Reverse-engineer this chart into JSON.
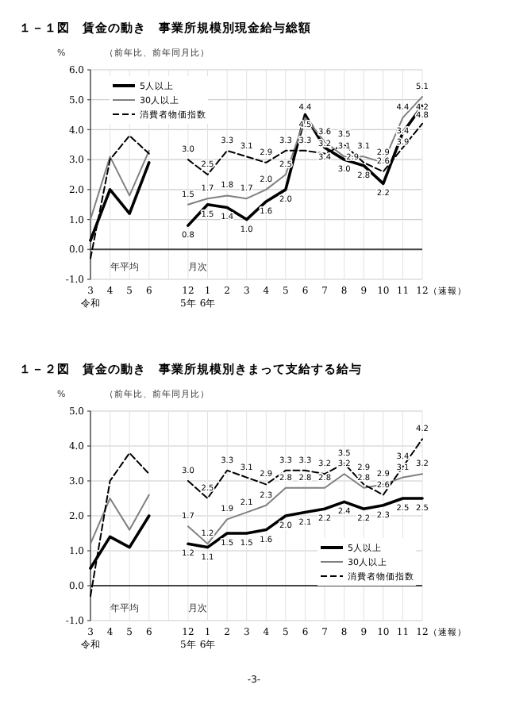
{
  "chart_data": [
    {
      "type": "line",
      "title": "１－１図　賃金の動き　事業所規模別現金給与総額",
      "subtitle": "（前年比、前年同月比）",
      "ylabel": "%",
      "categories": [
        "3\n令和",
        "4",
        "5",
        "6",
        null,
        "12\n5年",
        "1\n6年",
        "2",
        "3",
        "4",
        "5",
        "6",
        "7",
        "8",
        "9",
        "10",
        "11",
        "12"
      ],
      "ylim": [
        -1,
        6
      ],
      "yticks": [
        {
          "value": -1,
          "label": "-1.0"
        },
        {
          "value": 0,
          "label": "0.0"
        },
        {
          "value": 1,
          "label": "1.0"
        },
        {
          "value": 2,
          "label": "2.0"
        },
        {
          "value": 3,
          "label": "3.0"
        },
        {
          "value": 4,
          "label": "4.0"
        },
        {
          "value": 5,
          "label": "5.0"
        },
        {
          "value": 6,
          "label": "6.0"
        }
      ],
      "grid": true,
      "legend": "top left",
      "marker": "none",
      "annotations": [
        "年平均",
        "月次",
        "（速報）"
      ],
      "series": [
        {
          "name": "5人以上",
          "color": "#000000",
          "line_style": "solid",
          "values": [
            0.3,
            2.0,
            1.2,
            2.9,
            null,
            0.8,
            1.5,
            1.4,
            1.0,
            1.6,
            2.0,
            4.5,
            3.4,
            3.0,
            2.8,
            2.2,
            3.9,
            4.8
          ],
          "value_labels": [
            null,
            null,
            null,
            null,
            null,
            "0.8",
            "1.5",
            "1.4",
            "1.0",
            "1.6",
            "2.0",
            "4.5",
            "3.4",
            "3.0",
            "2.8",
            "2.2",
            "3.9",
            "4.8"
          ]
        },
        {
          "name": "30人以上",
          "color": "#808080",
          "line_style": "solid",
          "values": [
            1.0,
            3.1,
            1.8,
            3.3,
            null,
            1.5,
            1.7,
            1.8,
            1.7,
            2.0,
            2.5,
            4.4,
            3.6,
            3.1,
            3.1,
            2.9,
            4.4,
            5.1
          ],
          "value_labels": [
            null,
            null,
            null,
            null,
            null,
            "1.5",
            "1.7",
            "1.8",
            "1.7",
            "2.0",
            "2.5",
            "4.4",
            "3.6",
            "3.1",
            "3.1",
            "2.9",
            "4.4",
            "5.1"
          ]
        },
        {
          "name": "消費者物価指数",
          "color": "#000000",
          "line_style": "dashed",
          "values": [
            -0.3,
            3.0,
            3.8,
            3.2,
            null,
            3.0,
            2.5,
            3.3,
            3.1,
            2.9,
            3.3,
            3.3,
            3.2,
            3.5,
            2.9,
            2.6,
            3.4,
            4.2
          ],
          "value_labels": [
            null,
            null,
            null,
            null,
            null,
            "3.0",
            "2.5",
            "3.3",
            "3.1",
            "2.9",
            "3.3",
            "3.3",
            "3.2",
            "3.5",
            "2.9",
            "2.6",
            "3.4",
            "4.2"
          ]
        }
      ]
    },
    {
      "type": "line",
      "title": "１－２図　賃金の動き　事業所規模別きまって支給する給与",
      "subtitle": "（前年比、前年同月比）",
      "ylabel": "%",
      "categories": [
        "3\n令和",
        "4",
        "5",
        "6",
        null,
        "12\n5年",
        "1\n6年",
        "2",
        "3",
        "4",
        "5",
        "6",
        "7",
        "8",
        "9",
        "10",
        "11",
        "12"
      ],
      "ylim": [
        -1,
        5
      ],
      "yticks": [
        {
          "value": -1,
          "label": "-1.0"
        },
        {
          "value": 0,
          "label": "0.0"
        },
        {
          "value": 1,
          "label": "1.0"
        },
        {
          "value": 2,
          "label": "2.0"
        },
        {
          "value": 3,
          "label": "3.0"
        },
        {
          "value": 4,
          "label": "4.0"
        },
        {
          "value": 5,
          "label": "5.0"
        }
      ],
      "grid": true,
      "legend": "bottom right",
      "marker": "none",
      "annotations": [
        "年平均",
        "月次",
        "（速報）",
        "-3-"
      ],
      "series": [
        {
          "name": "5人以上",
          "color": "#000000",
          "line_style": "solid",
          "values": [
            0.5,
            1.4,
            1.1,
            2.0,
            null,
            1.2,
            1.1,
            1.5,
            1.5,
            1.6,
            2.0,
            2.1,
            2.2,
            2.4,
            2.2,
            2.3,
            2.5,
            2.5
          ],
          "value_labels": [
            null,
            null,
            null,
            null,
            null,
            "1.2",
            "1.1",
            "1.5",
            "1.5",
            "1.6",
            "2.0",
            "2.1",
            "2.2",
            "2.4",
            "2.2",
            "2.3",
            "2.5",
            "2.5"
          ]
        },
        {
          "name": "30人以上",
          "color": "#808080",
          "line_style": "solid",
          "values": [
            1.2,
            2.5,
            1.6,
            2.6,
            null,
            1.7,
            1.2,
            1.9,
            2.1,
            2.3,
            2.8,
            2.8,
            2.8,
            3.2,
            2.8,
            2.9,
            3.1,
            3.2
          ],
          "value_labels": [
            null,
            null,
            null,
            null,
            null,
            "1.7",
            "1.2",
            "1.9",
            "2.1",
            "2.3",
            "2.8",
            "2.8",
            "2.8",
            "3.2",
            "2.8",
            "2.9",
            "3.1",
            "3.2"
          ]
        },
        {
          "name": "消費者物価指数",
          "color": "#000000",
          "line_style": "dashed",
          "values": [
            -0.3,
            3.0,
            3.8,
            3.2,
            null,
            3.0,
            2.5,
            3.3,
            3.1,
            2.9,
            3.3,
            3.3,
            3.2,
            3.5,
            2.9,
            2.6,
            3.4,
            4.2
          ],
          "value_labels": [
            null,
            null,
            null,
            null,
            null,
            "3.0",
            "2.5",
            "3.3",
            "3.1",
            "2.9",
            "3.3",
            "3.3",
            "3.2",
            "3.5",
            "2.9",
            "2.6",
            "3.4",
            "4.2"
          ]
        }
      ]
    }
  ]
}
